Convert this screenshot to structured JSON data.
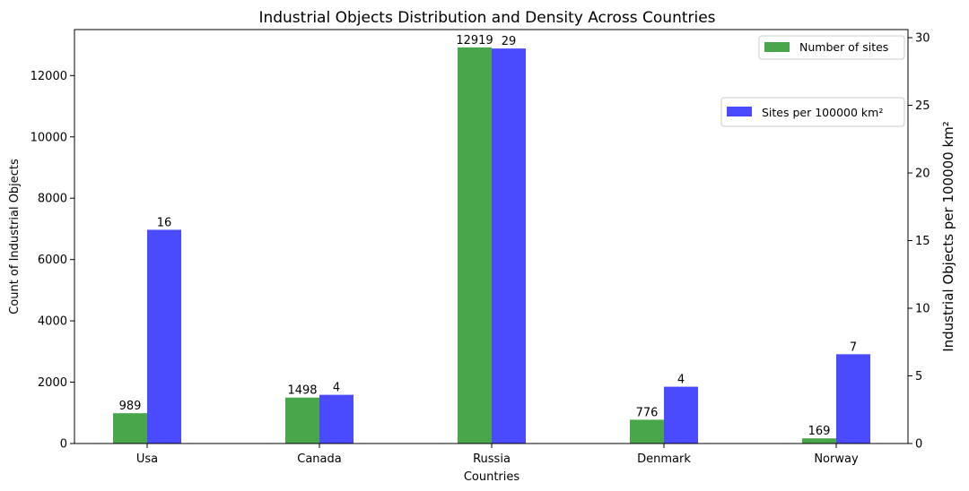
{
  "chart_data": {
    "type": "bar",
    "title": "Industrial Objects Distribution and Density Across Countries",
    "xlabel": "Countries",
    "ylabel_left": "Count of Industrial Objects",
    "ylabel_right": "Industrial Objects per 100000 km²",
    "categories": [
      "Usa",
      "Canada",
      "Russia",
      "Denmark",
      "Norway"
    ],
    "ylim_left": [
      0,
      13500
    ],
    "ylim_right": [
      0,
      30.6
    ],
    "yticks_left": [
      0,
      2000,
      4000,
      6000,
      8000,
      10000,
      12000
    ],
    "yticks_right": [
      0,
      5,
      10,
      15,
      20,
      25,
      30
    ],
    "grid": false,
    "series": [
      {
        "name": "Number of sites",
        "axis": "left",
        "color": "#4aa64a",
        "values": [
          989,
          1498,
          12919,
          776,
          169
        ],
        "labels": [
          "989",
          "1498",
          "12919",
          "776",
          "169"
        ]
      },
      {
        "name": "Sites per 100000 km²",
        "axis": "right",
        "color": "#4a4aff",
        "values": [
          15.8,
          3.6,
          29.2,
          4.2,
          6.6
        ],
        "labels": [
          "16",
          "4",
          "29",
          "4",
          "7"
        ]
      }
    ],
    "legend": [
      "top-right",
      "upper-right"
    ]
  }
}
